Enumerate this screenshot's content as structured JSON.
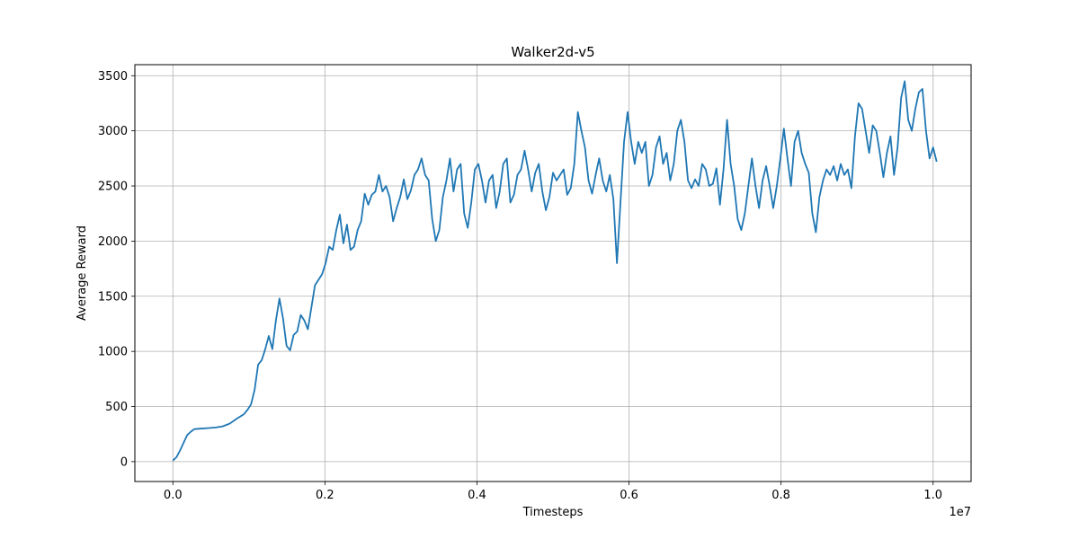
{
  "chart_data": {
    "type": "line",
    "title": "Walker2d-v5",
    "xlabel": "Timesteps",
    "ylabel": "Average Reward",
    "x_offset_label": "1e7",
    "xlim": [
      -0.05,
      1.05
    ],
    "ylim": [
      -180,
      3600
    ],
    "x_ticks": [
      0.0,
      0.2,
      0.4,
      0.6,
      0.8,
      1.0
    ],
    "x_tick_labels": [
      "0.0",
      "0.2",
      "0.4",
      "0.6",
      "0.8",
      "1.0"
    ],
    "y_ticks": [
      0,
      500,
      1000,
      1500,
      2000,
      2500,
      3000,
      3500
    ],
    "y_tick_labels": [
      "0",
      "500",
      "1000",
      "1500",
      "2000",
      "2500",
      "3000",
      "3500"
    ],
    "grid": true,
    "line_color": "#1f77b4",
    "series": [
      {
        "points": [
          [
            0.0,
            10
          ],
          [
            0.005,
            40
          ],
          [
            0.01,
            100
          ],
          [
            0.015,
            170
          ],
          [
            0.02,
            240
          ],
          [
            0.025,
            270
          ],
          [
            0.03,
            295
          ],
          [
            0.04,
            300
          ],
          [
            0.05,
            305
          ],
          [
            0.06,
            310
          ],
          [
            0.07,
            320
          ],
          [
            0.08,
            345
          ],
          [
            0.09,
            390
          ],
          [
            0.1,
            430
          ],
          [
            0.105,
            470
          ],
          [
            0.11,
            520
          ],
          [
            0.115,
            650
          ],
          [
            0.12,
            880
          ],
          [
            0.125,
            920
          ],
          [
            0.13,
            1020
          ],
          [
            0.135,
            1140
          ],
          [
            0.14,
            1020
          ],
          [
            0.145,
            1280
          ],
          [
            0.15,
            1480
          ],
          [
            0.155,
            1300
          ],
          [
            0.16,
            1050
          ],
          [
            0.165,
            1010
          ],
          [
            0.17,
            1150
          ],
          [
            0.175,
            1180
          ],
          [
            0.18,
            1330
          ],
          [
            0.185,
            1280
          ],
          [
            0.19,
            1200
          ],
          [
            0.195,
            1400
          ],
          [
            0.2,
            1600
          ],
          [
            0.21,
            1700
          ],
          [
            0.215,
            1800
          ],
          [
            0.22,
            1950
          ],
          [
            0.225,
            1920
          ],
          [
            0.23,
            2100
          ],
          [
            0.235,
            2240
          ],
          [
            0.24,
            1980
          ],
          [
            0.245,
            2150
          ],
          [
            0.25,
            1920
          ],
          [
            0.255,
            1950
          ],
          [
            0.26,
            2100
          ],
          [
            0.265,
            2180
          ],
          [
            0.27,
            2430
          ],
          [
            0.275,
            2330
          ],
          [
            0.28,
            2420
          ],
          [
            0.285,
            2450
          ],
          [
            0.29,
            2600
          ],
          [
            0.295,
            2450
          ],
          [
            0.3,
            2500
          ],
          [
            0.305,
            2400
          ],
          [
            0.31,
            2180
          ],
          [
            0.315,
            2300
          ],
          [
            0.32,
            2400
          ],
          [
            0.325,
            2560
          ],
          [
            0.33,
            2380
          ],
          [
            0.335,
            2460
          ],
          [
            0.34,
            2600
          ],
          [
            0.345,
            2650
          ],
          [
            0.35,
            2750
          ],
          [
            0.355,
            2600
          ],
          [
            0.36,
            2550
          ],
          [
            0.365,
            2200
          ],
          [
            0.37,
            2000
          ],
          [
            0.375,
            2100
          ],
          [
            0.38,
            2400
          ],
          [
            0.385,
            2550
          ],
          [
            0.39,
            2750
          ],
          [
            0.395,
            2450
          ],
          [
            0.4,
            2650
          ],
          [
            0.405,
            2700
          ],
          [
            0.41,
            2250
          ],
          [
            0.415,
            2120
          ],
          [
            0.42,
            2350
          ],
          [
            0.425,
            2650
          ],
          [
            0.43,
            2700
          ],
          [
            0.435,
            2550
          ],
          [
            0.44,
            2350
          ],
          [
            0.445,
            2550
          ],
          [
            0.45,
            2600
          ],
          [
            0.455,
            2300
          ],
          [
            0.46,
            2450
          ],
          [
            0.465,
            2700
          ],
          [
            0.47,
            2750
          ],
          [
            0.475,
            2350
          ],
          [
            0.48,
            2420
          ],
          [
            0.485,
            2600
          ],
          [
            0.49,
            2650
          ],
          [
            0.495,
            2820
          ],
          [
            0.5,
            2650
          ],
          [
            0.505,
            2450
          ],
          [
            0.51,
            2620
          ],
          [
            0.515,
            2700
          ],
          [
            0.52,
            2450
          ],
          [
            0.525,
            2280
          ],
          [
            0.53,
            2400
          ],
          [
            0.535,
            2620
          ],
          [
            0.54,
            2550
          ],
          [
            0.545,
            2600
          ],
          [
            0.55,
            2650
          ],
          [
            0.555,
            2420
          ],
          [
            0.56,
            2480
          ],
          [
            0.565,
            2700
          ],
          [
            0.57,
            3170
          ],
          [
            0.575,
            3000
          ],
          [
            0.58,
            2850
          ],
          [
            0.585,
            2550
          ],
          [
            0.59,
            2430
          ],
          [
            0.595,
            2600
          ],
          [
            0.6,
            2750
          ],
          [
            0.605,
            2550
          ],
          [
            0.61,
            2450
          ],
          [
            0.615,
            2600
          ],
          [
            0.62,
            2380
          ],
          [
            0.625,
            1800
          ],
          [
            0.63,
            2350
          ],
          [
            0.635,
            2900
          ],
          [
            0.64,
            3170
          ],
          [
            0.645,
            2900
          ],
          [
            0.65,
            2700
          ],
          [
            0.655,
            2900
          ],
          [
            0.66,
            2800
          ],
          [
            0.665,
            2900
          ],
          [
            0.67,
            2500
          ],
          [
            0.675,
            2600
          ],
          [
            0.68,
            2850
          ],
          [
            0.685,
            2950
          ],
          [
            0.69,
            2700
          ],
          [
            0.695,
            2800
          ],
          [
            0.7,
            2550
          ],
          [
            0.705,
            2700
          ],
          [
            0.71,
            3000
          ],
          [
            0.715,
            3100
          ],
          [
            0.72,
            2900
          ],
          [
            0.725,
            2550
          ],
          [
            0.73,
            2480
          ],
          [
            0.735,
            2560
          ],
          [
            0.74,
            2500
          ],
          [
            0.745,
            2700
          ],
          [
            0.75,
            2650
          ],
          [
            0.755,
            2500
          ],
          [
            0.76,
            2520
          ],
          [
            0.765,
            2660
          ],
          [
            0.77,
            2330
          ],
          [
            0.775,
            2650
          ],
          [
            0.78,
            3100
          ],
          [
            0.785,
            2700
          ],
          [
            0.79,
            2500
          ],
          [
            0.795,
            2200
          ],
          [
            0.8,
            2100
          ],
          [
            0.805,
            2250
          ],
          [
            0.81,
            2500
          ],
          [
            0.815,
            2750
          ],
          [
            0.82,
            2500
          ],
          [
            0.825,
            2300
          ],
          [
            0.83,
            2550
          ],
          [
            0.835,
            2680
          ],
          [
            0.84,
            2500
          ],
          [
            0.845,
            2300
          ],
          [
            0.85,
            2500
          ],
          [
            0.855,
            2750
          ],
          [
            0.86,
            3020
          ],
          [
            0.865,
            2750
          ],
          [
            0.87,
            2500
          ],
          [
            0.875,
            2900
          ],
          [
            0.88,
            3000
          ],
          [
            0.885,
            2800
          ],
          [
            0.89,
            2700
          ],
          [
            0.895,
            2620
          ],
          [
            0.9,
            2250
          ],
          [
            0.905,
            2080
          ],
          [
            0.91,
            2400
          ],
          [
            0.915,
            2550
          ],
          [
            0.92,
            2650
          ],
          [
            0.925,
            2600
          ],
          [
            0.93,
            2680
          ],
          [
            0.935,
            2550
          ],
          [
            0.94,
            2700
          ],
          [
            0.945,
            2600
          ],
          [
            0.95,
            2650
          ],
          [
            0.955,
            2480
          ],
          [
            0.96,
            2950
          ],
          [
            0.965,
            3250
          ],
          [
            0.97,
            3200
          ],
          [
            0.975,
            3000
          ],
          [
            0.98,
            2800
          ],
          [
            0.985,
            3050
          ],
          [
            0.99,
            3000
          ],
          [
            0.995,
            2800
          ],
          [
            1.0,
            2580
          ],
          [
            1.005,
            2800
          ],
          [
            1.01,
            2950
          ],
          [
            1.015,
            2600
          ],
          [
            1.02,
            2850
          ],
          [
            1.025,
            3300
          ],
          [
            1.03,
            3450
          ],
          [
            1.035,
            3100
          ],
          [
            1.04,
            3000
          ],
          [
            1.045,
            3200
          ],
          [
            1.05,
            3350
          ],
          [
            1.055,
            3380
          ],
          [
            1.06,
            3000
          ],
          [
            1.065,
            2750
          ],
          [
            1.07,
            2850
          ],
          [
            1.075,
            2720
          ]
        ]
      }
    ]
  }
}
